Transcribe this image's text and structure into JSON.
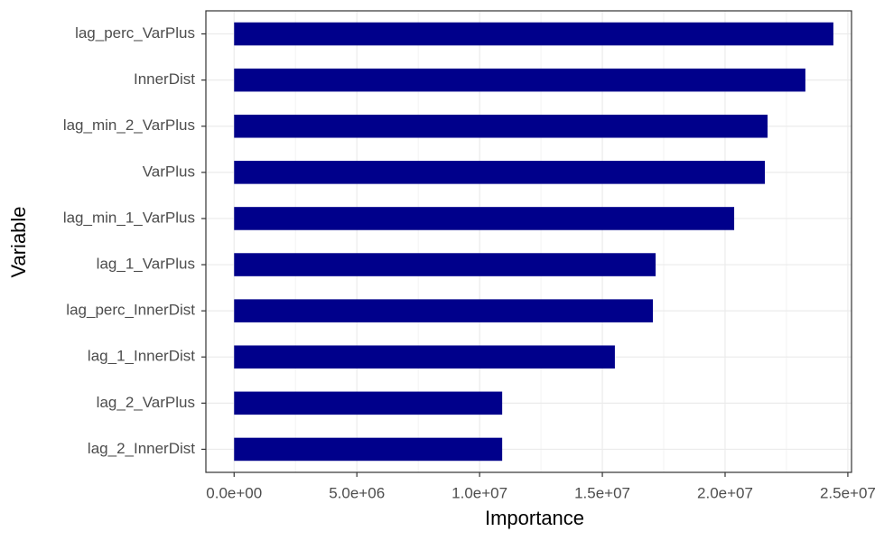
{
  "chart_data": {
    "type": "barh",
    "x_label": "Importance",
    "y_label": "Variable",
    "categories": [
      "lag_perc_VarPlus",
      "InnerDist",
      "lag_min_2_VarPlus",
      "VarPlus",
      "lag_min_1_VarPlus",
      "lag_1_VarPlus",
      "lag_perc_InnerDist",
      "lag_1_InnerDist",
      "lag_2_VarPlus",
      "lag_2_InnerDist"
    ],
    "values": [
      24410000,
      23270000,
      21730000,
      21620000,
      20370000,
      17170000,
      17060000,
      15510000,
      10920000,
      10920000
    ],
    "color": "#00008b",
    "xlim": [
      -1150000,
      25150000
    ],
    "xticks": [
      {
        "value": 0,
        "label": "0.0e+00"
      },
      {
        "value": 5000000,
        "label": "5.0e+06"
      },
      {
        "value": 10000000,
        "label": "1.0e+07"
      },
      {
        "value": 15000000,
        "label": "1.5e+07"
      },
      {
        "value": 20000000,
        "label": "2.0e+07"
      },
      {
        "value": 25000000,
        "label": "2.5e+07"
      }
    ],
    "grid": true
  }
}
